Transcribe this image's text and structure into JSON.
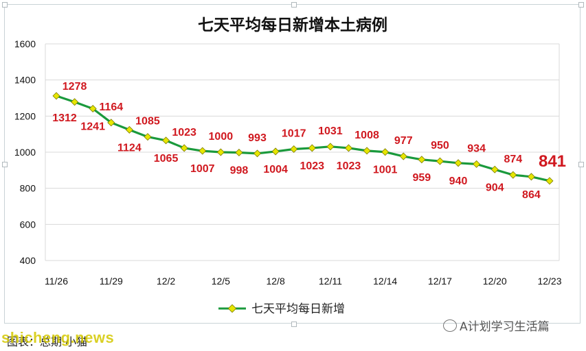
{
  "chart_data": {
    "type": "line",
    "title": "七天平均每日新增本土病例",
    "x_tick_labels": [
      "11/26",
      "11/29",
      "12/2",
      "12/5",
      "12/8",
      "12/11",
      "12/14",
      "12/17",
      "12/20",
      "12/23"
    ],
    "x": [
      "11/26",
      "11/27",
      "11/28",
      "11/29",
      "11/30",
      "12/1",
      "12/2",
      "12/3",
      "12/4",
      "12/5",
      "12/6",
      "12/7",
      "12/8",
      "12/9",
      "12/10",
      "12/11",
      "12/12",
      "12/13",
      "12/14",
      "12/15",
      "12/16",
      "12/17",
      "12/18",
      "12/19",
      "12/20",
      "12/21",
      "12/22",
      "12/23"
    ],
    "series": [
      {
        "name": "七天平均每日新增",
        "color": "#1a9a3c",
        "marker_color": "#e6e600",
        "values": [
          1312,
          1278,
          1241,
          1164,
          1124,
          1085,
          1065,
          1023,
          1007,
          1000,
          998,
          993,
          1004,
          1017,
          1023,
          1031,
          1023,
          1008,
          1001,
          977,
          959,
          950,
          940,
          934,
          904,
          874,
          864,
          841
        ]
      }
    ],
    "ylim": [
      400,
      1600
    ],
    "y_ticks": [
      400,
      600,
      800,
      1000,
      1200,
      1400,
      1600
    ],
    "grid": true,
    "legend_position": "bottom",
    "label_color": "#d0181f"
  },
  "footer": {
    "source": "图表：总期·小猫"
  },
  "watermarks": {
    "left": "shicheng.news",
    "right": "A计划学习生活篇"
  }
}
